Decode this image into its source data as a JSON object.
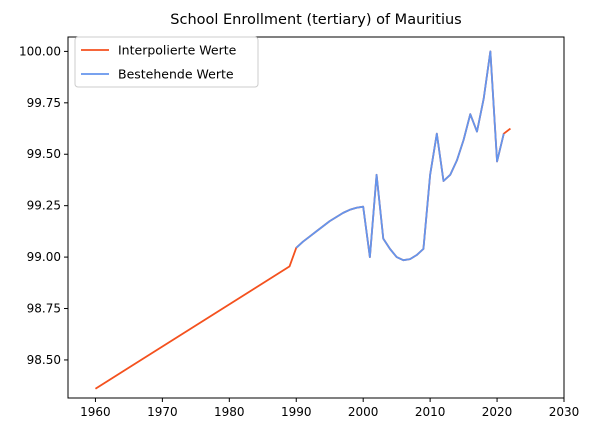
{
  "chart_data": {
    "type": "line",
    "title": "School Enrollment (tertiary) of Mauritius",
    "xlabel": "",
    "ylabel": "",
    "xlim": [
      1955.9,
      2030
    ],
    "ylim": [
      98.315,
      100.07
    ],
    "x_ticks": [
      1960,
      1970,
      1980,
      1990,
      2000,
      2010,
      2020,
      2030
    ],
    "y_ticks": [
      98.5,
      98.75,
      99.0,
      99.25,
      99.5,
      99.75,
      100.0
    ],
    "y_tick_labels": [
      "98.50",
      "98.75",
      "99.00",
      "99.25",
      "99.50",
      "99.75",
      "100.00"
    ],
    "grid": false,
    "legend": {
      "position": "top-left"
    },
    "series": [
      {
        "name": "Interpolierte Werte",
        "color": "#f4511e",
        "x": [
          1960,
          1989,
          1990,
          1991,
          1992,
          1993,
          1994,
          1995,
          1996,
          1997,
          1998,
          1999,
          2000,
          2001,
          2002,
          2003,
          2004,
          2005,
          2006,
          2007,
          2008,
          2009,
          2010,
          2011,
          2012,
          2013,
          2014,
          2015,
          2016,
          2017,
          2018,
          2019,
          2020,
          2021,
          2022
        ],
        "values": [
          98.36,
          98.955,
          99.045,
          99.075,
          99.1,
          99.125,
          99.15,
          99.175,
          99.195,
          99.215,
          99.23,
          99.24,
          99.245,
          99.0,
          99.4,
          99.09,
          99.04,
          99.0,
          98.985,
          98.99,
          99.01,
          99.04,
          99.4,
          99.6,
          99.37,
          99.4,
          99.47,
          99.57,
          99.695,
          99.61,
          99.77,
          100.0,
          99.465,
          99.6,
          99.625
        ]
      },
      {
        "name": "Bestehende Werte",
        "color": "#6495ed",
        "x": [
          1990,
          1991,
          1992,
          1993,
          1994,
          1995,
          1996,
          1997,
          1998,
          1999,
          2000,
          2001,
          2002,
          2003,
          2004,
          2005,
          2006,
          2007,
          2008,
          2009,
          2010,
          2011,
          2012,
          2013,
          2014,
          2015,
          2016,
          2017,
          2018,
          2019,
          2020,
          2021
        ],
        "values": [
          99.045,
          99.075,
          99.1,
          99.125,
          99.15,
          99.175,
          99.195,
          99.215,
          99.23,
          99.24,
          99.245,
          99.0,
          99.4,
          99.09,
          99.04,
          99.0,
          98.985,
          98.99,
          99.01,
          99.04,
          99.4,
          99.6,
          99.37,
          99.4,
          99.47,
          99.57,
          99.695,
          99.61,
          99.77,
          100.0,
          99.465,
          99.6
        ]
      }
    ]
  }
}
